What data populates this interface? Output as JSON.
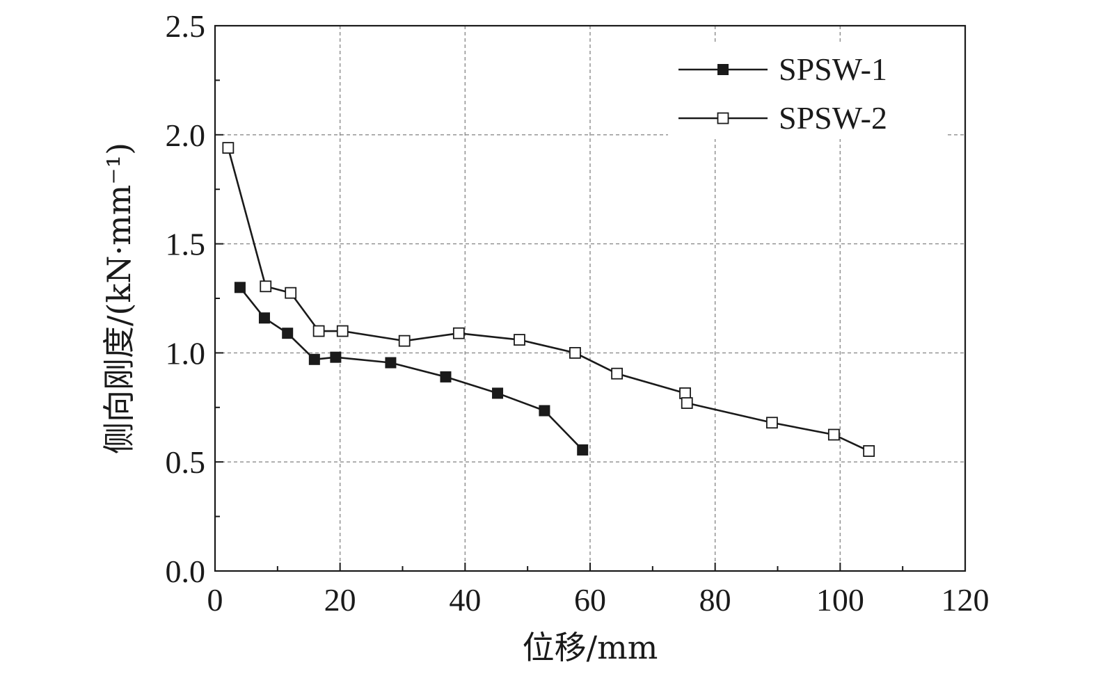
{
  "chart_data": {
    "type": "line",
    "xlabel": "位移/mm",
    "ylabel": "侧向刚度/(kN·mm⁻¹)",
    "xlim": [
      0,
      120
    ],
    "ylim": [
      0,
      2.5
    ],
    "x_ticks": [
      "0",
      "20",
      "40",
      "60",
      "80",
      "100",
      "120"
    ],
    "y_ticks": [
      "0.0",
      "0.5",
      "1.0",
      "1.5",
      "2.0",
      "2.5"
    ],
    "grid": true,
    "legend_position": "top-right",
    "series": [
      {
        "name": "SPSW-1",
        "marker": "filled-square",
        "color": "#1a1a1a",
        "x": [
          4.0,
          7.9,
          11.6,
          15.9,
          19.3,
          28.1,
          36.9,
          45.2,
          52.7,
          58.8
        ],
        "y": [
          1.3,
          1.16,
          1.09,
          0.97,
          0.98,
          0.955,
          0.89,
          0.815,
          0.735,
          0.555
        ]
      },
      {
        "name": "SPSW-2",
        "marker": "open-square",
        "color": "#1a1a1a",
        "x": [
          2.1,
          8.1,
          12.1,
          16.6,
          20.4,
          30.3,
          39.0,
          48.7,
          57.6,
          64.3,
          75.2,
          75.5,
          89.1,
          99.0,
          104.6
        ],
        "y": [
          1.94,
          1.305,
          1.275,
          1.1,
          1.1,
          1.055,
          1.09,
          1.06,
          1.0,
          0.905,
          0.815,
          0.77,
          0.68,
          0.625,
          0.55
        ]
      }
    ]
  }
}
